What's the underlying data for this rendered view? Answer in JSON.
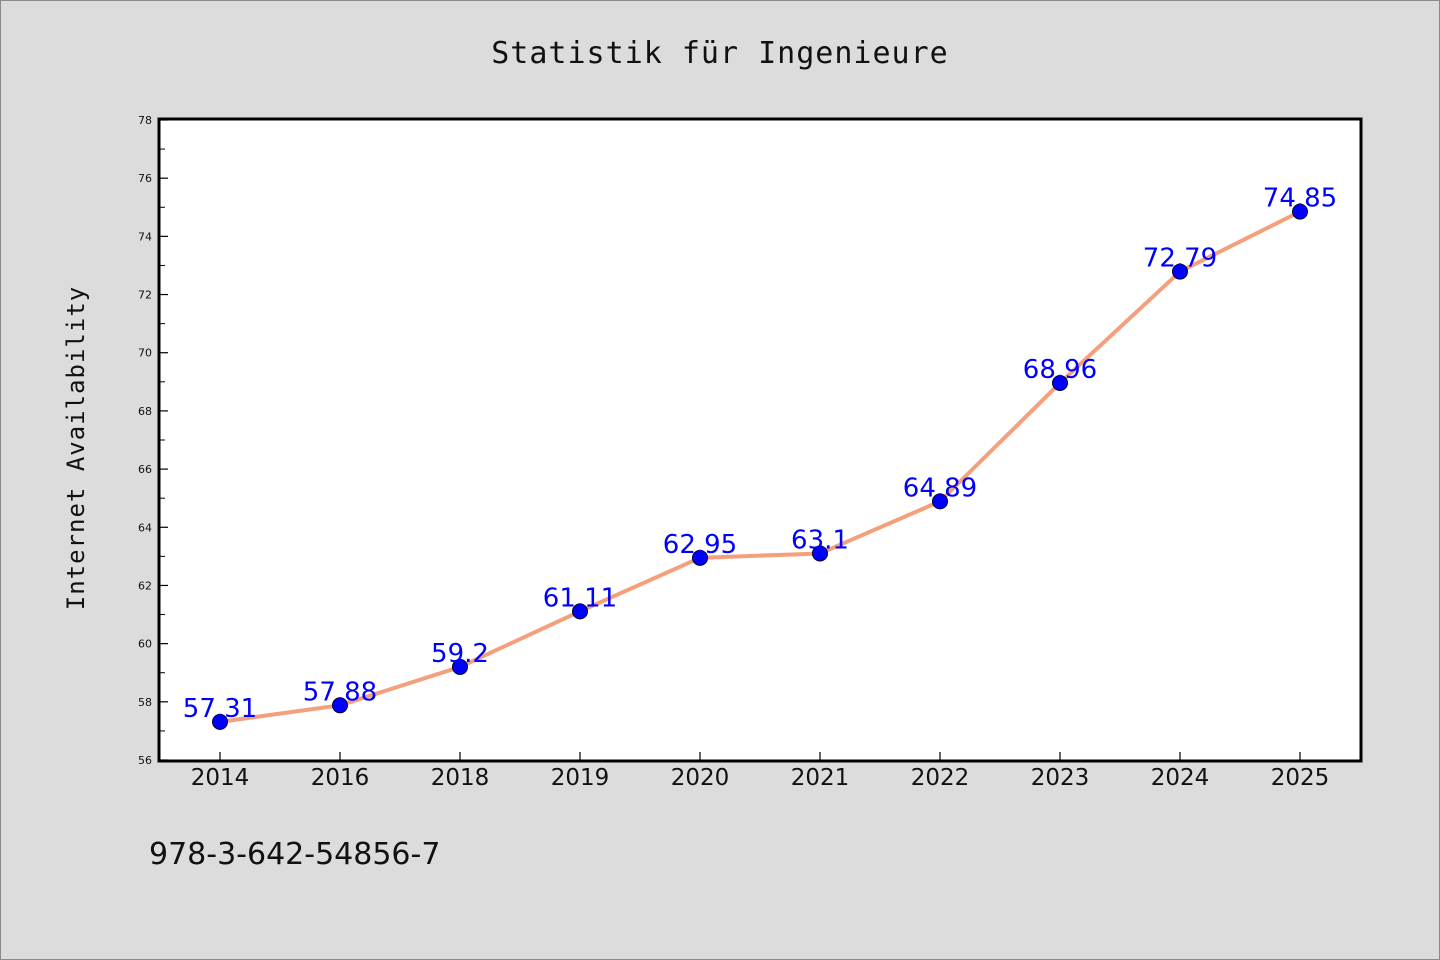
{
  "chart_data": {
    "type": "line",
    "title": "Statistik für Ingenieure",
    "xlabel": "",
    "ylabel": "Internet Availability",
    "categories": [
      "2014",
      "2016",
      "2018",
      "2019",
      "2020",
      "2021",
      "2022",
      "2023",
      "2024",
      "2025"
    ],
    "values": [
      57.31,
      57.88,
      59.2,
      61.11,
      62.95,
      63.1,
      64.89,
      68.96,
      72.79,
      74.85
    ],
    "data_labels": [
      "57.31",
      "57.88",
      "59.2",
      "61.11",
      "62.95",
      "63.1",
      "64.89",
      "68.96",
      "72.79",
      "74.85"
    ],
    "ylim": [
      56,
      78
    ],
    "yticks": [
      56,
      58,
      60,
      62,
      64,
      66,
      68,
      70,
      72,
      74,
      76,
      78
    ],
    "ytick_labels": [
      "56",
      "58",
      "60",
      "62",
      "64",
      "66",
      "68",
      "70",
      "72",
      "74",
      "76",
      "78"
    ],
    "grid": false,
    "legend": false,
    "line_color": "#f4a07c",
    "marker_color": "#0000ff",
    "label_color": "#0000ff",
    "footer": "978-3-642-54856-7"
  },
  "colors": {
    "background": "#dcdcdc",
    "plot_background": "#ffffff",
    "axis": "#000000"
  }
}
